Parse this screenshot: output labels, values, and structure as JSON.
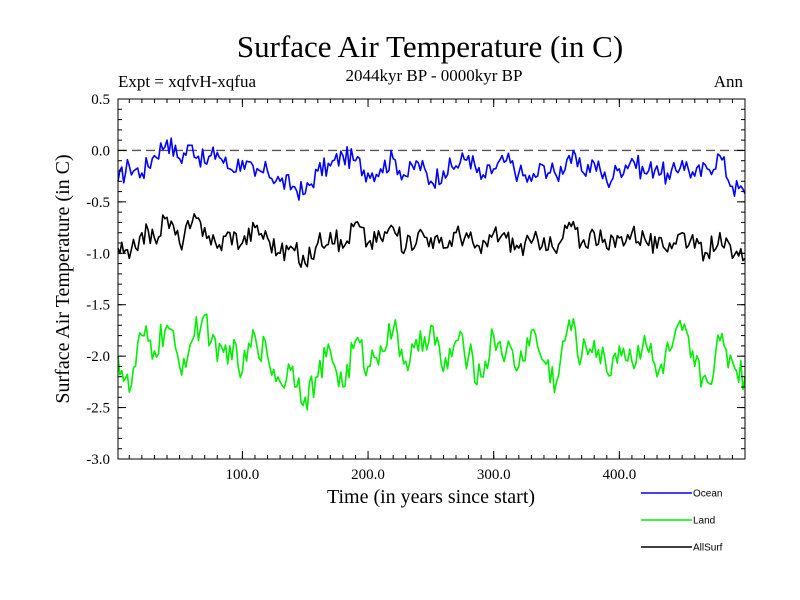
{
  "chart_data": {
    "type": "line",
    "title": "Surface Air Temperature (in C)",
    "subtitle": "2044kyr BP - 0000kyr BP",
    "experiment": "Expt = xqfvH-xqfua",
    "season": "Ann",
    "xlabel": "Time (in years since start)",
    "ylabel": "Surface Air Temperature (in C)",
    "xlim": [
      1,
      500
    ],
    "ylim": [
      -3.0,
      0.5
    ],
    "xticks": [
      100,
      200,
      300,
      400
    ],
    "xtick_labels": [
      "100.0",
      "200.0",
      "300.0",
      "400.0"
    ],
    "yticks": [
      0.5,
      0.0,
      -0.5,
      -1.0,
      -1.5,
      -2.0,
      -2.5,
      -3.0
    ],
    "ytick_labels": [
      "0.5",
      "0.0",
      "-0.5",
      "-1.0",
      "-1.5",
      "-2.0",
      "-2.5",
      "-3.0"
    ],
    "reference_line": 0.0,
    "legend_position": "bottom-right, outside plot",
    "series": [
      {
        "name": "Ocean",
        "color": "#0000ff",
        "x": [
          1,
          10,
          20,
          30,
          40,
          50,
          60,
          70,
          80,
          90,
          100,
          110,
          120,
          130,
          140,
          150,
          160,
          170,
          180,
          190,
          200,
          210,
          220,
          230,
          240,
          250,
          260,
          270,
          280,
          290,
          300,
          310,
          320,
          330,
          340,
          350,
          360,
          370,
          380,
          390,
          400,
          410,
          420,
          430,
          440,
          450,
          460,
          470,
          480,
          490,
          500
        ],
        "values": [
          -0.3,
          -0.15,
          -0.22,
          -0.05,
          0.1,
          -0.08,
          0.05,
          -0.12,
          -0.02,
          -0.18,
          -0.1,
          -0.25,
          -0.2,
          -0.3,
          -0.35,
          -0.42,
          -0.2,
          -0.15,
          -0.05,
          -0.1,
          -0.22,
          -0.18,
          -0.08,
          -0.25,
          -0.12,
          -0.3,
          -0.2,
          -0.15,
          -0.05,
          -0.28,
          -0.18,
          -0.1,
          -0.22,
          -0.3,
          -0.15,
          -0.25,
          -0.05,
          -0.2,
          -0.12,
          -0.3,
          -0.18,
          -0.08,
          -0.22,
          -0.15,
          -0.28,
          -0.1,
          -0.25,
          -0.18,
          -0.05,
          -0.35,
          -0.42
        ]
      },
      {
        "name": "Land",
        "color": "#00ee00",
        "x": [
          1,
          10,
          20,
          30,
          40,
          50,
          60,
          70,
          80,
          90,
          100,
          110,
          120,
          130,
          140,
          150,
          160,
          170,
          180,
          190,
          200,
          210,
          220,
          230,
          240,
          250,
          260,
          270,
          280,
          290,
          300,
          310,
          320,
          330,
          340,
          350,
          360,
          370,
          380,
          390,
          400,
          410,
          420,
          430,
          440,
          450,
          460,
          470,
          480,
          490,
          500
        ],
        "values": [
          -2.0,
          -2.35,
          -1.8,
          -1.95,
          -1.7,
          -2.1,
          -1.85,
          -1.6,
          -2.05,
          -1.9,
          -2.15,
          -1.8,
          -2.0,
          -2.25,
          -2.1,
          -2.4,
          -2.2,
          -1.95,
          -2.3,
          -1.85,
          -2.1,
          -1.9,
          -1.75,
          -2.05,
          -1.95,
          -1.7,
          -2.15,
          -1.85,
          -2.0,
          -2.2,
          -1.8,
          -1.95,
          -2.1,
          -1.75,
          -2.05,
          -2.25,
          -1.65,
          -2.0,
          -1.85,
          -2.15,
          -1.9,
          -2.05,
          -1.8,
          -2.2,
          -1.95,
          -1.75,
          -2.1,
          -2.25,
          -1.85,
          -2.05,
          -2.2
        ]
      },
      {
        "name": "AllSurf",
        "color": "#000000",
        "x": [
          1,
          10,
          20,
          30,
          40,
          50,
          60,
          70,
          80,
          90,
          100,
          110,
          120,
          130,
          140,
          150,
          160,
          170,
          180,
          190,
          200,
          210,
          220,
          230,
          240,
          250,
          260,
          270,
          280,
          290,
          300,
          310,
          320,
          330,
          340,
          350,
          360,
          370,
          380,
          390,
          400,
          410,
          420,
          430,
          440,
          450,
          460,
          470,
          480,
          490,
          500
        ],
        "values": [
          -0.95,
          -1.05,
          -0.8,
          -0.85,
          -0.65,
          -0.9,
          -0.7,
          -0.75,
          -0.95,
          -0.8,
          -0.9,
          -0.75,
          -0.85,
          -1.0,
          -0.95,
          -1.1,
          -0.9,
          -0.8,
          -0.95,
          -0.7,
          -0.9,
          -0.85,
          -0.75,
          -0.95,
          -0.8,
          -0.85,
          -0.95,
          -0.8,
          -0.85,
          -1.0,
          -0.8,
          -0.85,
          -0.95,
          -0.9,
          -0.85,
          -1.0,
          -0.7,
          -0.9,
          -0.8,
          -0.95,
          -0.85,
          -0.8,
          -0.85,
          -0.95,
          -0.9,
          -0.8,
          -0.95,
          -1.0,
          -0.8,
          -1.05,
          -1.05
        ]
      }
    ]
  }
}
